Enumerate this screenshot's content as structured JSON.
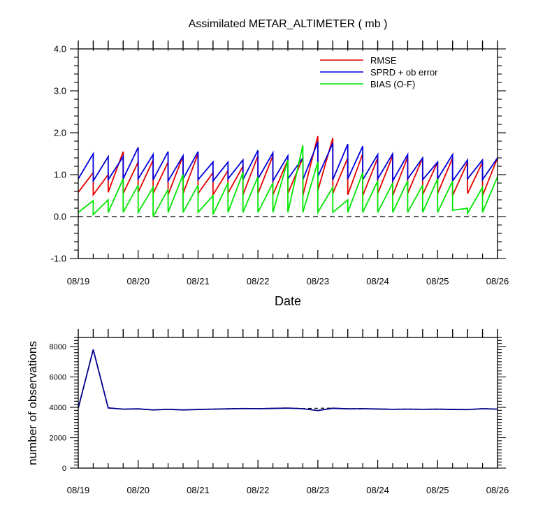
{
  "chart_data": [
    {
      "type": "line",
      "title": "Assimilated METAR_ALTIMETER ( mb )",
      "xlabel": "Date",
      "ylabel": "",
      "ylim": [
        -1.0,
        4.0
      ],
      "xlim": [
        "08/19 00Z",
        "08/26 00Z"
      ],
      "x_tick_labels": [
        "08/19",
        "08/20",
        "08/21",
        "08/22",
        "08/23",
        "08/24",
        "08/25",
        "08/26"
      ],
      "y_tick_labels": [
        "-1.0",
        "0.0",
        "1.0",
        "2.0",
        "3.0",
        "4.0"
      ],
      "y_ticks": [
        -1.0,
        0.0,
        1.0,
        2.0,
        3.0,
        4.0
      ],
      "zero_line": "dashed",
      "legend_position": "top-right",
      "colors": {
        "rmse": "#e60000",
        "spread": "#0000dd",
        "bias": "#00e600",
        "axis": "#000000"
      },
      "x_unit": "6-hour analysis cycles from 08/19 00Z (sawtooth: forecast value then analysis value each cycle)",
      "series": [
        {
          "name": "RMSE",
          "key": "rmse",
          "cycles": [
            [
              0.58,
              1.05
            ],
            [
              0.52,
              1.0
            ],
            [
              0.58,
              1.55
            ],
            [
              0.55,
              1.3
            ],
            [
              0.58,
              1.35
            ],
            [
              0.55,
              1.3
            ],
            [
              0.52,
              1.45
            ],
            [
              0.55,
              1.5
            ],
            [
              0.55,
              1.05
            ],
            [
              0.52,
              1.1
            ],
            [
              0.56,
              1.2
            ],
            [
              0.52,
              1.45
            ],
            [
              0.55,
              1.45
            ],
            [
              0.52,
              1.35
            ],
            [
              0.55,
              1.4
            ],
            [
              0.5,
              1.92
            ],
            [
              0.62,
              1.87
            ],
            [
              0.55,
              1.4
            ],
            [
              0.52,
              1.5
            ],
            [
              0.5,
              1.4
            ],
            [
              0.55,
              1.45
            ],
            [
              0.5,
              1.42
            ],
            [
              0.55,
              1.4
            ],
            [
              0.52,
              1.3
            ],
            [
              0.55,
              1.4
            ],
            [
              0.5,
              1.3
            ],
            [
              0.55,
              1.3
            ],
            [
              0.5,
              1.4
            ]
          ]
        },
        {
          "name": "SPRD + ob error",
          "key": "spread",
          "cycles": [
            [
              0.9,
              1.5
            ],
            [
              0.85,
              1.43
            ],
            [
              0.88,
              1.43
            ],
            [
              0.9,
              1.65
            ],
            [
              0.9,
              1.48
            ],
            [
              0.88,
              1.55
            ],
            [
              0.85,
              1.45
            ],
            [
              0.9,
              1.55
            ],
            [
              0.88,
              1.3
            ],
            [
              0.85,
              1.3
            ],
            [
              0.9,
              1.35
            ],
            [
              0.88,
              1.58
            ],
            [
              0.9,
              1.52
            ],
            [
              0.85,
              1.45
            ],
            [
              0.9,
              1.4
            ],
            [
              0.88,
              1.78
            ],
            [
              0.95,
              1.75
            ],
            [
              0.88,
              1.73
            ],
            [
              0.9,
              1.68
            ],
            [
              0.88,
              1.48
            ],
            [
              0.9,
              1.5
            ],
            [
              0.85,
              1.48
            ],
            [
              0.9,
              1.4
            ],
            [
              0.88,
              1.3
            ],
            [
              0.9,
              1.48
            ],
            [
              0.85,
              1.35
            ],
            [
              0.9,
              1.35
            ],
            [
              0.88,
              1.4
            ]
          ]
        },
        {
          "name": "BIAS (O-F)",
          "key": "bias",
          "cycles": [
            [
              0.1,
              0.38
            ],
            [
              0.05,
              0.4
            ],
            [
              0.1,
              0.9
            ],
            [
              0.1,
              0.75
            ],
            [
              0.1,
              0.7
            ],
            [
              0.0,
              0.65
            ],
            [
              0.1,
              1.0
            ],
            [
              0.1,
              0.75
            ],
            [
              0.1,
              0.5
            ],
            [
              0.05,
              0.8
            ],
            [
              0.1,
              1.05
            ],
            [
              0.1,
              0.95
            ],
            [
              0.1,
              0.8
            ],
            [
              0.1,
              1.35
            ],
            [
              0.1,
              1.7
            ],
            [
              0.1,
              1.3
            ],
            [
              0.1,
              0.7
            ],
            [
              0.1,
              0.4
            ],
            [
              0.1,
              1.05
            ],
            [
              0.1,
              0.85
            ],
            [
              0.1,
              0.8
            ],
            [
              0.1,
              0.85
            ],
            [
              0.1,
              0.75
            ],
            [
              0.1,
              0.9
            ],
            [
              0.1,
              0.85
            ],
            [
              0.15,
              0.2
            ],
            [
              0.08,
              0.7
            ],
            [
              0.1,
              0.95
            ]
          ]
        }
      ]
    },
    {
      "type": "line",
      "title": "",
      "xlabel": "",
      "ylabel": "number of observations",
      "ylim": [
        0,
        8600
      ],
      "xlim": [
        "08/19 00Z",
        "08/26 00Z"
      ],
      "x_tick_labels": [
        "08/19",
        "08/20",
        "08/21",
        "08/22",
        "08/23",
        "08/24",
        "08/25",
        "08/26"
      ],
      "y_tick_labels": [
        "0",
        "2000",
        "4000",
        "6000",
        "8000"
      ],
      "y_ticks": [
        0,
        2000,
        4000,
        6000,
        8000
      ],
      "colors": {
        "assimilated": "#00008b",
        "possible": "#000000"
      },
      "x_unit": "6-hour analysis cycles from 08/19 00Z",
      "series": [
        {
          "key": "assimilated",
          "values": [
            3950,
            7800,
            3960,
            3880,
            3900,
            3830,
            3870,
            3830,
            3860,
            3880,
            3900,
            3920,
            3910,
            3930,
            3950,
            3910,
            3790,
            3940,
            3900,
            3910,
            3890,
            3870,
            3880,
            3870,
            3880,
            3860,
            3850,
            3910,
            3880
          ]
        },
        {
          "key": "possible",
          "values": [
            3960,
            7810,
            3970,
            3890,
            3910,
            3840,
            3880,
            3840,
            3870,
            3890,
            3910,
            3930,
            3920,
            3940,
            3960,
            3920,
            3940,
            3950,
            3910,
            3920,
            3900,
            3880,
            3890,
            3880,
            3890,
            3870,
            3860,
            3920,
            3890
          ]
        }
      ]
    }
  ]
}
